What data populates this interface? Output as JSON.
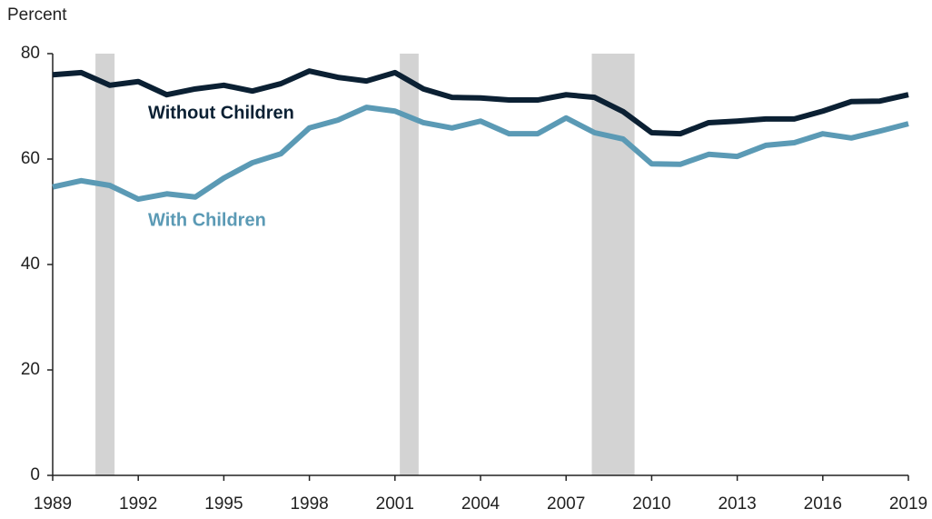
{
  "chart_data": {
    "type": "line",
    "ylabel": "Percent",
    "x": [
      1989,
      1990,
      1991,
      1992,
      1993,
      1994,
      1995,
      1996,
      1997,
      1998,
      1999,
      2000,
      2001,
      2002,
      2003,
      2004,
      2005,
      2006,
      2007,
      2008,
      2009,
      2010,
      2011,
      2012,
      2013,
      2014,
      2015,
      2016,
      2017,
      2018,
      2019
    ],
    "series": [
      {
        "name": "Without Children",
        "color": "#0b2033",
        "values": [
          76.0,
          76.4,
          74.0,
          74.7,
          72.2,
          73.3,
          74.0,
          72.9,
          74.3,
          76.7,
          75.5,
          74.8,
          76.4,
          73.3,
          71.7,
          71.6,
          71.2,
          71.2,
          72.2,
          71.7,
          69.0,
          65.0,
          64.8,
          66.9,
          67.2,
          67.6,
          67.6,
          69.1,
          70.9,
          71.0,
          72.2
        ]
      },
      {
        "name": "With Children",
        "color": "#5b9ab5",
        "values": [
          54.7,
          55.9,
          55.0,
          52.4,
          53.4,
          52.8,
          56.4,
          59.3,
          61.0,
          65.9,
          67.4,
          69.8,
          69.1,
          66.9,
          65.9,
          67.2,
          64.8,
          64.8,
          67.8,
          65.0,
          63.8,
          59.1,
          59.0,
          60.9,
          60.5,
          62.6,
          63.1,
          64.8,
          64.0,
          65.3,
          66.7
        ]
      }
    ],
    "recessions": [
      [
        1990.5,
        1991.17
      ],
      [
        2001.17,
        2001.83
      ],
      [
        2007.9,
        2009.4
      ]
    ],
    "recession_color": "#d3d3d3",
    "xlim": [
      1989,
      2019
    ],
    "xticks": [
      1989,
      1992,
      1995,
      1998,
      2001,
      2004,
      2007,
      2010,
      2013,
      2016,
      2019
    ],
    "ylim": [
      0,
      80
    ],
    "yticks": [
      0,
      20,
      40,
      60,
      80
    ],
    "grid": false
  }
}
